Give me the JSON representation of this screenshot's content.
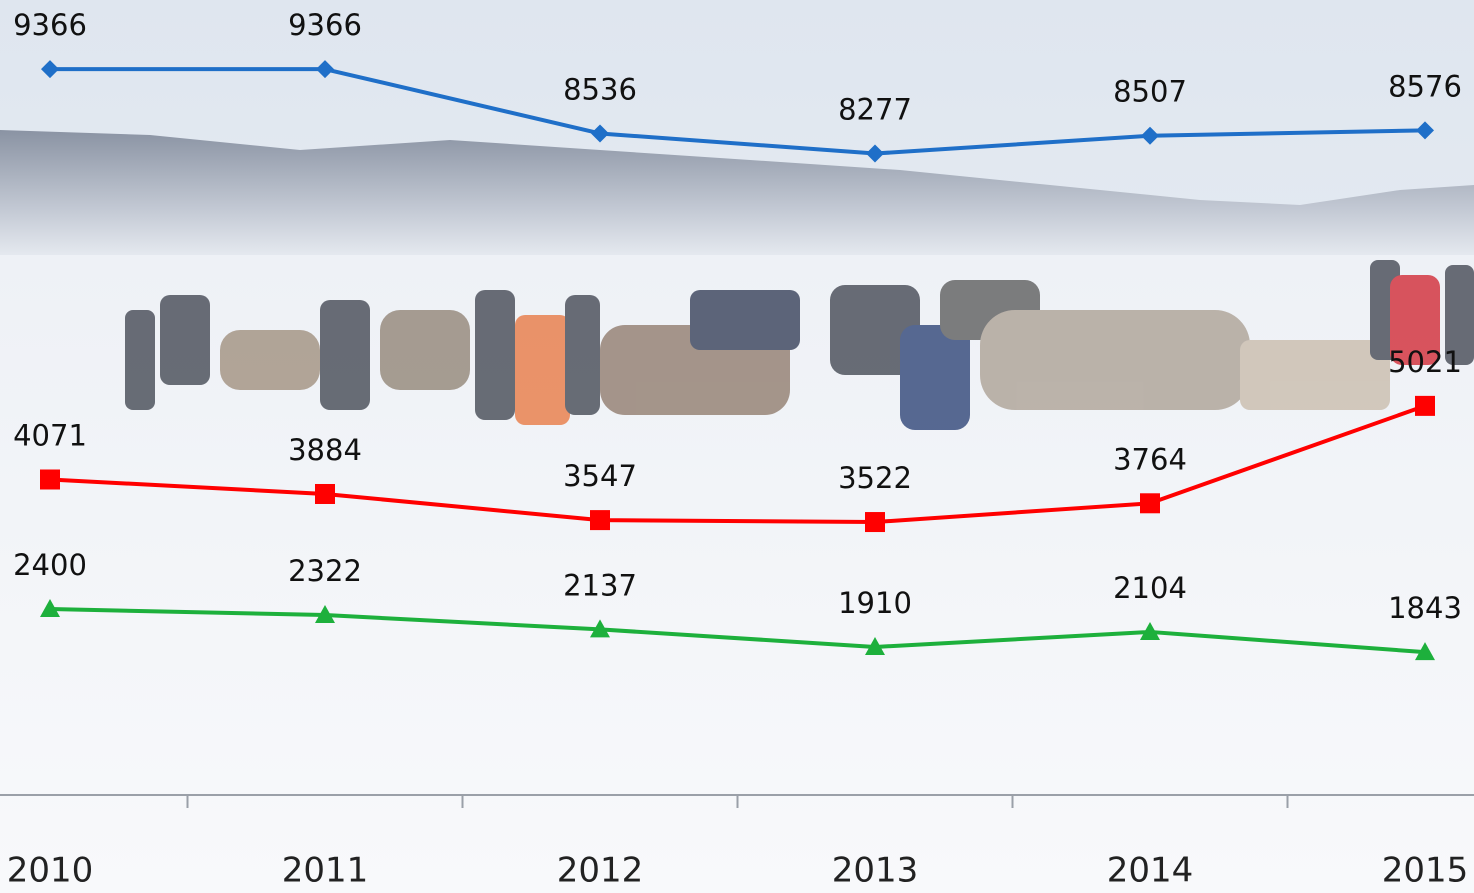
{
  "chart_data": {
    "type": "line",
    "categories": [
      "2010",
      "2011",
      "2012",
      "2013",
      "2014",
      "2015"
    ],
    "series": [
      {
        "color": "#1f6fc8",
        "marker": "diamond",
        "values": [
          9366,
          9366,
          8536,
          8277,
          8507,
          8576
        ]
      },
      {
        "color": "#ff0000",
        "marker": "square",
        "values": [
          4071,
          3884,
          3547,
          3522,
          3764,
          5021
        ]
      },
      {
        "color": "#1db03c",
        "marker": "triangle",
        "values": [
          2400,
          2322,
          2137,
          1910,
          2104,
          1843
        ]
      }
    ],
    "ylim": [
      0,
      10000
    ]
  }
}
